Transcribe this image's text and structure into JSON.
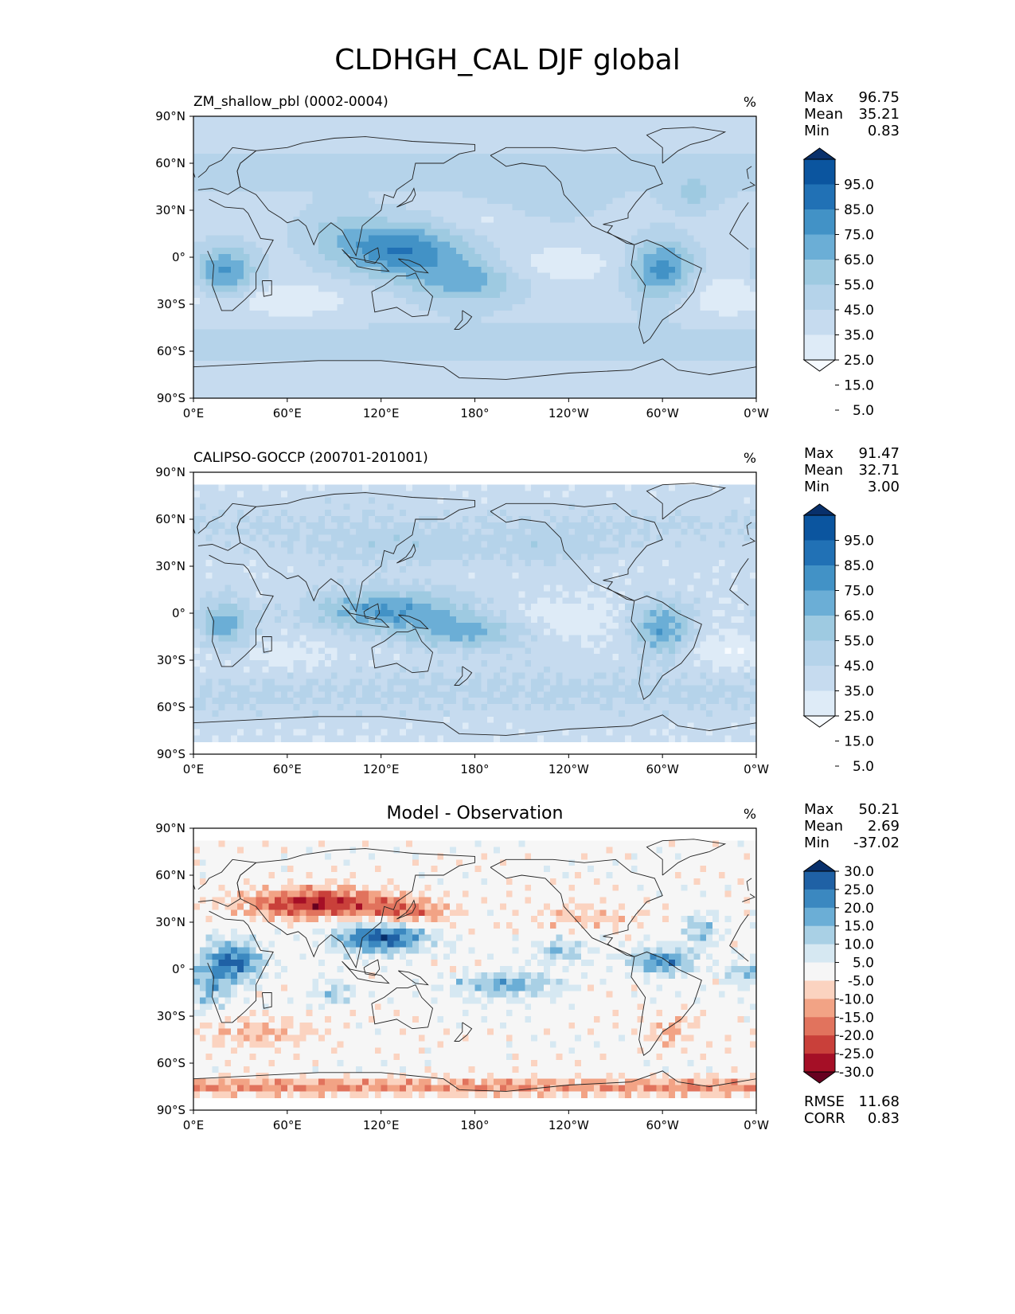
{
  "title": "CLDHGH_CAL DJF global",
  "colors": {
    "blues": [
      "#f7fbff",
      "#deebf7",
      "#c6dbef",
      "#b5d3ea",
      "#9ecae1",
      "#6baed6",
      "#4292c6",
      "#2171b5",
      "#0b559f",
      "#08306b"
    ],
    "rdbu": [
      "#67001f",
      "#a50f26",
      "#c9403a",
      "#e1735d",
      "#f2a385",
      "#fbd3c0",
      "#f6f6f6",
      "#d6e8f2",
      "#a9d0e5",
      "#6baed6",
      "#3b88c0",
      "#1f61a5",
      "#08306b"
    ],
    "coast": "#222222"
  },
  "chart_data": [
    {
      "type": "heatmap",
      "panel": "test",
      "title": "ZM_shallow_pbl (0002-0004)",
      "units": "%",
      "stats": {
        "max_label": "Max",
        "max": "96.75",
        "mean_label": "Mean",
        "mean": "35.21",
        "min_label": "Min",
        "min": "0.83"
      },
      "colorbar_ticks": [
        "95.0",
        "85.0",
        "75.0",
        "65.0",
        "55.0",
        "45.0",
        "35.0",
        "25.0",
        "15.0",
        "5.0"
      ],
      "xticks": [
        "0°E",
        "60°E",
        "120°E",
        "180°",
        "120°W",
        "60°W",
        "0°W"
      ],
      "yticks": [
        "90°N",
        "60°N",
        "30°N",
        "0°",
        "30°S",
        "60°S",
        "90°S"
      ],
      "xlim": [
        0,
        360
      ],
      "ylim": [
        -90,
        90
      ]
    },
    {
      "type": "heatmap",
      "panel": "reference",
      "title": "CALIPSO-GOCCP (200701-201001)",
      "units": "%",
      "stats": {
        "max_label": "Max",
        "max": "91.47",
        "mean_label": "Mean",
        "mean": "32.71",
        "min_label": "Min",
        "min": "3.00"
      },
      "colorbar_ticks": [
        "95.0",
        "85.0",
        "75.0",
        "65.0",
        "55.0",
        "45.0",
        "35.0",
        "25.0",
        "15.0",
        "5.0"
      ],
      "xticks": [
        "0°E",
        "60°E",
        "120°E",
        "180°",
        "120°W",
        "60°W",
        "0°W"
      ],
      "yticks": [
        "90°N",
        "60°N",
        "30°N",
        "0°",
        "30°S",
        "60°S",
        "90°S"
      ],
      "xlim": [
        0,
        360
      ],
      "ylim": [
        -90,
        90
      ]
    },
    {
      "type": "heatmap",
      "panel": "difference",
      "title": "Model - Observation",
      "units": "%",
      "stats": {
        "max_label": "Max",
        "max": "50.21",
        "mean_label": "Mean",
        "mean": "2.69",
        "min_label": "Min",
        "min": "-37.02",
        "rmse_label": "RMSE",
        "rmse": "11.68",
        "corr_label": "CORR",
        "corr": "0.83"
      },
      "colorbar_ticks": [
        "30.0",
        "25.0",
        "20.0",
        "15.0",
        "10.0",
        "5.0",
        "-5.0",
        "-10.0",
        "-15.0",
        "-20.0",
        "-25.0",
        "-30.0"
      ],
      "xticks": [
        "0°E",
        "60°E",
        "120°E",
        "180°",
        "120°W",
        "60°W",
        "0°W"
      ],
      "yticks": [
        "90°N",
        "60°N",
        "30°N",
        "0°",
        "30°S",
        "60°S",
        "90°S"
      ],
      "xlim": [
        0,
        360
      ],
      "ylim": [
        -90,
        90
      ]
    }
  ]
}
